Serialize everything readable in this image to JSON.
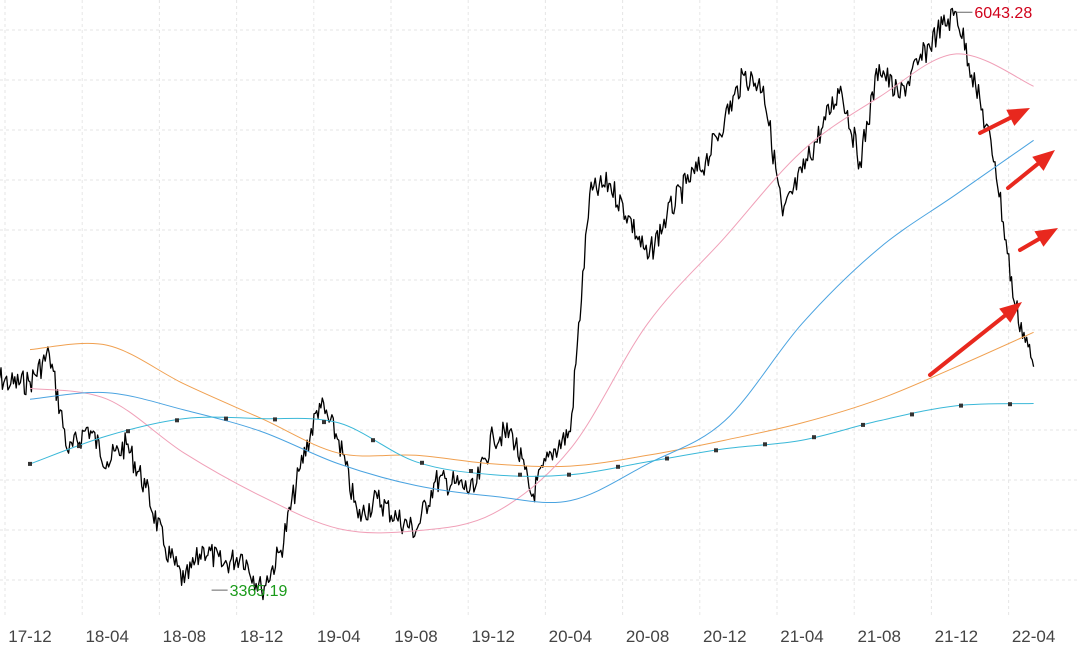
{
  "chart_data": {
    "type": "line",
    "title": "",
    "xlabel": "",
    "ylabel": "",
    "x_tick_labels": [
      "17-12",
      "18-04",
      "18-08",
      "18-12",
      "19-04",
      "19-08",
      "19-12",
      "20-04",
      "20-08",
      "20-12",
      "21-04",
      "21-08",
      "21-12",
      "22-04"
    ],
    "ylim": [
      3250,
      6100
    ],
    "grid": true,
    "annotations": {
      "max_label": "6043.28",
      "min_label": "3365.19",
      "max_color": "#d0021b",
      "min_color": "#1a9a1a"
    },
    "series": [
      {
        "role": "price",
        "color": "#000000",
        "points": [
          [
            "17-10",
            4370
          ],
          [
            "17-11",
            4320
          ],
          [
            "17-12",
            4330
          ],
          [
            "18-01",
            4460
          ],
          [
            "18-02",
            4000
          ],
          [
            "18-03",
            4120
          ],
          [
            "18-04",
            3960
          ],
          [
            "18-05",
            4040
          ],
          [
            "18-06",
            3840
          ],
          [
            "18-07",
            3560
          ],
          [
            "18-08",
            3400
          ],
          [
            "18-09",
            3560
          ],
          [
            "18-10",
            3480
          ],
          [
            "18-11",
            3530
          ],
          [
            "18-12",
            3365.19
          ],
          [
            "19-01",
            3550
          ],
          [
            "19-02",
            3930
          ],
          [
            "19-03",
            4230
          ],
          [
            "19-04",
            4060
          ],
          [
            "19-05",
            3700
          ],
          [
            "19-06",
            3790
          ],
          [
            "19-07",
            3700
          ],
          [
            "19-08",
            3640
          ],
          [
            "19-09",
            3870
          ],
          [
            "19-10",
            3860
          ],
          [
            "19-11",
            3820
          ],
          [
            "19-12",
            4080
          ],
          [
            "20-01",
            4090
          ],
          [
            "20-02",
            3800
          ],
          [
            "20-03",
            4000
          ],
          [
            "20-04",
            4100
          ],
          [
            "20-05",
            5200
          ],
          [
            "20-06",
            5250
          ],
          [
            "20-07",
            5100
          ],
          [
            "20-08",
            4900
          ],
          [
            "20-09",
            5100
          ],
          [
            "20-10",
            5250
          ],
          [
            "20-11",
            5350
          ],
          [
            "20-12",
            5550
          ],
          [
            "21-01",
            5750
          ],
          [
            "21-02",
            5700
          ],
          [
            "21-03",
            5100
          ],
          [
            "21-04",
            5300
          ],
          [
            "21-05",
            5500
          ],
          [
            "21-06",
            5700
          ],
          [
            "21-07",
            5350
          ],
          [
            "21-08",
            5800
          ],
          [
            "21-09",
            5650
          ],
          [
            "21-10",
            5800
          ],
          [
            "21-11",
            5950
          ],
          [
            "21-12",
            6043.28
          ],
          [
            "22-01",
            5700
          ],
          [
            "22-02",
            5350
          ],
          [
            "22-03",
            4700
          ],
          [
            "22-04",
            4400
          ]
        ]
      },
      {
        "role": "moving-average",
        "color": "#f0a050",
        "points": [
          [
            "17-12",
            4480
          ],
          [
            "18-04",
            4500
          ],
          [
            "18-08",
            4320
          ],
          [
            "18-12",
            4160
          ],
          [
            "19-04",
            4000
          ],
          [
            "19-08",
            3990
          ],
          [
            "19-12",
            3950
          ],
          [
            "20-04",
            3940
          ],
          [
            "20-08",
            3990
          ],
          [
            "20-12",
            4060
          ],
          [
            "21-04",
            4140
          ],
          [
            "21-08",
            4250
          ],
          [
            "21-12",
            4400
          ],
          [
            "22-04",
            4560
          ]
        ]
      },
      {
        "role": "moving-average",
        "color": "#f0a0b8",
        "points": [
          [
            "17-12",
            4300
          ],
          [
            "18-04",
            4250
          ],
          [
            "18-08",
            4000
          ],
          [
            "18-12",
            3800
          ],
          [
            "19-04",
            3650
          ],
          [
            "19-08",
            3640
          ],
          [
            "19-12",
            3720
          ],
          [
            "20-04",
            4020
          ],
          [
            "20-08",
            4600
          ],
          [
            "20-12",
            5000
          ],
          [
            "21-04",
            5400
          ],
          [
            "21-08",
            5650
          ],
          [
            "21-12",
            5850
          ],
          [
            "22-04",
            5700
          ]
        ]
      },
      {
        "role": "moving-average",
        "color": "#4aa3e0",
        "points": [
          [
            "17-12",
            4250
          ],
          [
            "18-04",
            4280
          ],
          [
            "18-08",
            4200
          ],
          [
            "18-12",
            4100
          ],
          [
            "19-04",
            3950
          ],
          [
            "19-08",
            3850
          ],
          [
            "19-12",
            3800
          ],
          [
            "20-04",
            3780
          ],
          [
            "20-08",
            3950
          ],
          [
            "20-12",
            4150
          ],
          [
            "21-04",
            4600
          ],
          [
            "21-08",
            4950
          ],
          [
            "21-12",
            5200
          ],
          [
            "22-04",
            5450
          ]
        ]
      },
      {
        "role": "moving-average",
        "color": "#3ab8d8",
        "marker": "square",
        "points": [
          [
            "17-12",
            3950
          ],
          [
            "18-04",
            4080
          ],
          [
            "18-08",
            4160
          ],
          [
            "18-12",
            4160
          ],
          [
            "19-04",
            4140
          ],
          [
            "19-08",
            3960
          ],
          [
            "19-12",
            3900
          ],
          [
            "20-04",
            3900
          ],
          [
            "20-08",
            3960
          ],
          [
            "20-12",
            4020
          ],
          [
            "21-04",
            4060
          ],
          [
            "21-08",
            4150
          ],
          [
            "21-12",
            4220
          ],
          [
            "22-04",
            4230
          ]
        ]
      }
    ],
    "arrows_color": "#e8281e",
    "arrow_count": 4
  }
}
